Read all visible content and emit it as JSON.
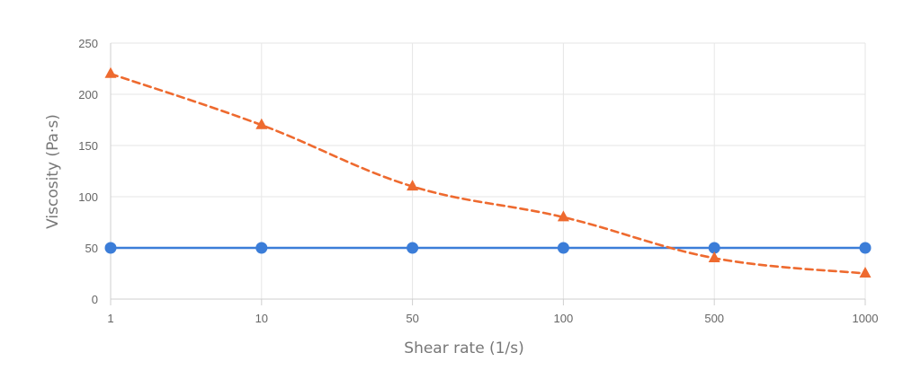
{
  "chart_data": {
    "type": "line",
    "title": "",
    "xlabel": "Shear rate (1/s)",
    "ylabel": "Viscosity (Pa·s)",
    "categories": [
      "1",
      "10",
      "50",
      "100",
      "500",
      "1000"
    ],
    "ylim": [
      0,
      250
    ],
    "yticks": [
      "0",
      "50",
      "100",
      "150",
      "200",
      "250"
    ],
    "grid": true,
    "legend": "none",
    "series": [
      {
        "values": [
          50,
          50,
          50,
          50,
          50,
          50
        ],
        "color": "#3b7dd8",
        "line_style": "solid",
        "marker": "circle"
      },
      {
        "values": [
          220,
          170,
          110,
          80,
          40,
          25
        ],
        "color": "#ee6a2f",
        "line_style": "dashed",
        "marker": "triangle"
      }
    ]
  }
}
